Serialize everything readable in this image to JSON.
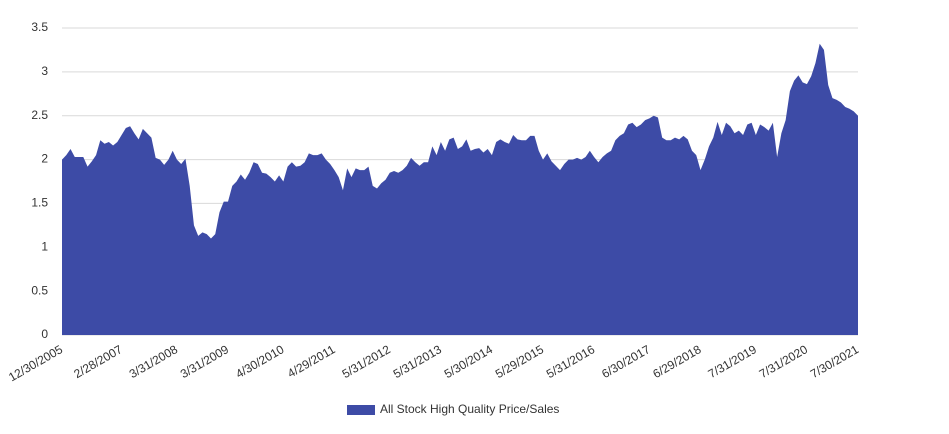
{
  "chart_data": {
    "type": "area",
    "categories": [
      "12/30/2005",
      null,
      null,
      null,
      null,
      null,
      null,
      null,
      null,
      null,
      null,
      null,
      null,
      null,
      "2/28/2007",
      null,
      null,
      null,
      null,
      null,
      null,
      null,
      null,
      null,
      null,
      null,
      null,
      "3/31/2008",
      null,
      null,
      null,
      null,
      null,
      null,
      null,
      null,
      null,
      null,
      null,
      "3/31/2009",
      null,
      null,
      null,
      null,
      null,
      null,
      null,
      null,
      null,
      null,
      null,
      null,
      "4/30/2010",
      null,
      null,
      null,
      null,
      null,
      null,
      null,
      null,
      null,
      null,
      null,
      "4/29/2011",
      null,
      null,
      null,
      null,
      null,
      null,
      null,
      null,
      null,
      null,
      null,
      null,
      "5/31/2012",
      null,
      null,
      null,
      null,
      null,
      null,
      null,
      null,
      null,
      null,
      null,
      "5/31/2013",
      null,
      null,
      null,
      null,
      null,
      null,
      null,
      null,
      null,
      null,
      null,
      "5/30/2014",
      null,
      null,
      null,
      null,
      null,
      null,
      null,
      null,
      null,
      null,
      null,
      "5/29/2015",
      null,
      null,
      null,
      null,
      null,
      null,
      null,
      null,
      null,
      null,
      null,
      "5/31/2016",
      null,
      null,
      null,
      null,
      null,
      null,
      null,
      null,
      null,
      null,
      null,
      null,
      "6/30/2017",
      null,
      null,
      null,
      null,
      null,
      null,
      null,
      null,
      null,
      null,
      null,
      "6/29/2018",
      null,
      null,
      null,
      null,
      null,
      null,
      null,
      null,
      null,
      null,
      null,
      null,
      "7/31/2019",
      null,
      null,
      null,
      null,
      null,
      null,
      null,
      null,
      null,
      null,
      null,
      "7/31/2020",
      null,
      null,
      null,
      null,
      null,
      null,
      null,
      null,
      null,
      null,
      null,
      "7/30/2021"
    ],
    "series": [
      {
        "name": "All Stock High Quality Price/Sales",
        "color": "#3d4ba6",
        "values": [
          2.0,
          2.05,
          2.12,
          2.03,
          2.03,
          2.03,
          1.92,
          1.98,
          2.05,
          2.22,
          2.18,
          2.2,
          2.16,
          2.2,
          2.28,
          2.36,
          2.38,
          2.3,
          2.23,
          2.35,
          2.3,
          2.25,
          2.02,
          2.0,
          1.94,
          2.0,
          2.1,
          2.0,
          1.95,
          2.01,
          1.7,
          1.25,
          1.13,
          1.17,
          1.15,
          1.1,
          1.15,
          1.4,
          1.52,
          1.52,
          1.7,
          1.75,
          1.83,
          1.77,
          1.85,
          1.97,
          1.95,
          1.85,
          1.84,
          1.8,
          1.75,
          1.82,
          1.75,
          1.92,
          1.97,
          1.92,
          1.93,
          1.97,
          2.07,
          2.05,
          2.05,
          2.07,
          2.0,
          1.95,
          1.88,
          1.8,
          1.65,
          1.9,
          1.8,
          1.9,
          1.88,
          1.88,
          1.92,
          1.7,
          1.67,
          1.73,
          1.77,
          1.85,
          1.87,
          1.85,
          1.88,
          1.93,
          2.02,
          1.97,
          1.93,
          1.97,
          1.97,
          2.15,
          2.05,
          2.2,
          2.1,
          2.23,
          2.25,
          2.12,
          2.15,
          2.23,
          2.1,
          2.12,
          2.13,
          2.08,
          2.12,
          2.05,
          2.2,
          2.23,
          2.2,
          2.18,
          2.28,
          2.23,
          2.22,
          2.22,
          2.27,
          2.27,
          2.1,
          2.0,
          2.07,
          1.98,
          1.93,
          1.88,
          1.95,
          2.0,
          2.0,
          2.02,
          2.0,
          2.03,
          2.1,
          2.03,
          1.97,
          2.03,
          2.07,
          2.1,
          2.22,
          2.27,
          2.3,
          2.4,
          2.42,
          2.37,
          2.4,
          2.45,
          2.47,
          2.5,
          2.48,
          2.25,
          2.22,
          2.22,
          2.25,
          2.23,
          2.27,
          2.23,
          2.1,
          2.05,
          1.88,
          2.0,
          2.15,
          2.25,
          2.43,
          2.28,
          2.42,
          2.38,
          2.3,
          2.33,
          2.28,
          2.4,
          2.42,
          2.28,
          2.4,
          2.37,
          2.33,
          2.42,
          2.03,
          2.3,
          2.45,
          2.78,
          2.9,
          2.96,
          2.88,
          2.86,
          2.95,
          3.1,
          3.32,
          3.25,
          2.85,
          2.7,
          2.68,
          2.65,
          2.6,
          2.58,
          2.55,
          2.5
        ]
      }
    ],
    "ylim": [
      0,
      3.5
    ],
    "yticks": [
      0,
      0.5,
      1,
      1.5,
      2,
      2.5,
      3,
      3.5
    ],
    "grid": true,
    "legend": "bottom"
  }
}
